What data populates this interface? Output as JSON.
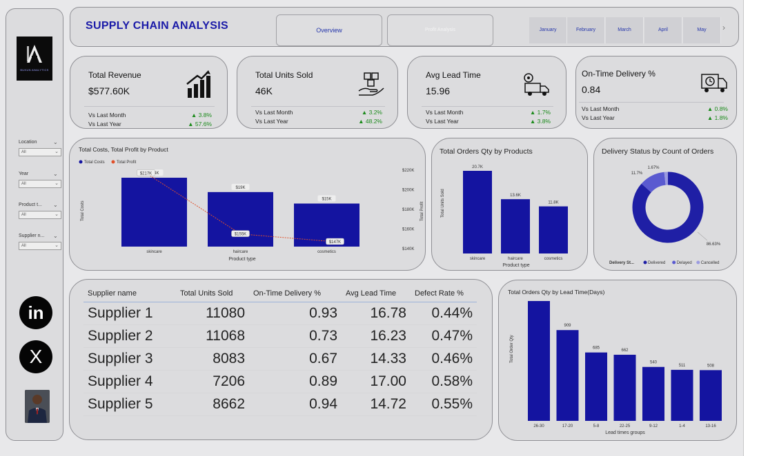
{
  "header": {
    "title": "SUPPLY CHAIN ANALYSIS",
    "nav": [
      "Overview",
      "Profit Analysis"
    ],
    "months": [
      "January",
      "February",
      "March",
      "April",
      "May"
    ]
  },
  "logo": {
    "text": "BUKUN ANALYTICS"
  },
  "filters": [
    {
      "label": "Location",
      "value": "All"
    },
    {
      "label": "Year",
      "value": "All"
    },
    {
      "label": "Product t...",
      "value": "All"
    },
    {
      "label": "Supplier n...",
      "value": "All"
    }
  ],
  "social": {
    "linkedin_glyph": "in",
    "x_glyph": "X"
  },
  "kpis": [
    {
      "title": "Total Revenue",
      "value": "$577.60K",
      "row1": "Vs Last Month",
      "chg1": "▲ 3.8%",
      "row2": "Vs Last Year",
      "chg2": "▲ 57.6%",
      "icon": "growth-chart-icon"
    },
    {
      "title": "Total Units Sold",
      "value": "46K",
      "row1": "Vs Last Month",
      "chg1": "▲ 3.2%",
      "row2": "Vs Last Year",
      "chg2": "▲ 48.2%",
      "icon": "boxes-hand-icon"
    },
    {
      "title": "Avg Lead Time",
      "value": "15.96",
      "row1": "Vs Last Month",
      "chg1": "▲ 1.7%",
      "row2": "Vs Last Year",
      "chg2": "▲ 3.8%",
      "icon": "delivery-truck-gear-icon"
    },
    {
      "title": "On-Time Delivery %",
      "value": "0.84",
      "row1": "Vs Last Month",
      "chg1": "▲ 0.8%",
      "row2": "Vs Last Year",
      "chg2": "▲ 1.8%",
      "icon": "truck-clock-icon"
    }
  ],
  "colors": {
    "bar": "#1414a0",
    "line": "#e0502a",
    "green": "#1a8a1a"
  },
  "chart_data": [
    {
      "type": "bar",
      "title": "Total Costs, Total Profit by Product",
      "legend": [
        "Total Costs",
        "Total Profit"
      ],
      "xlabel": "Product type",
      "ylabel": "Total Costs",
      "y2label": "Total Profit",
      "categories": [
        "skincare",
        "haircare",
        "cosmetics"
      ],
      "series": [
        {
          "name": "Total Costs",
          "values": [
            24,
            19,
            15
          ],
          "labels": [
            "$24K",
            "$19K",
            "$15K"
          ]
        },
        {
          "name": "Total Profit",
          "values": [
            217,
            155,
            147
          ],
          "labels": [
            "$217K",
            "$155K",
            "$147K"
          ]
        }
      ],
      "y2_ticks": [
        "$220K",
        "$200K",
        "$180K",
        "$160K",
        "$140K"
      ],
      "y2lim": [
        140,
        220
      ]
    },
    {
      "type": "bar",
      "title": "Total Orders Qty by Products",
      "xlabel": "Product type",
      "ylabel": "Total Units Sold",
      "categories": [
        "skincare",
        "haircare",
        "cosmetics"
      ],
      "values": [
        20.7,
        13.6,
        11.8
      ],
      "labels": [
        "20.7K",
        "13.6K",
        "11.8K"
      ]
    },
    {
      "type": "pie",
      "title": "Delivery Status by Count of Orders",
      "legend_title": "Delivery St...",
      "categories": [
        "Delivered",
        "Delayed",
        "Cancelled"
      ],
      "values": [
        86.63,
        11.7,
        1.67
      ],
      "labels": [
        "86.63%",
        "11.7%",
        "1.67%"
      ],
      "colors": [
        "#1f1fa5",
        "#5a5ad0",
        "#9a9ae0"
      ]
    },
    {
      "type": "bar",
      "title": "Total Orders Qty by Lead Time(Days)",
      "xlabel": "Lead times groups",
      "ylabel": "Total Order Qty",
      "categories": [
        "26-30",
        "17-20",
        "5-8",
        "22-25",
        "9-12",
        "1-4",
        "13-16"
      ],
      "values": [
        1200,
        909,
        685,
        662,
        540,
        511,
        508
      ],
      "labels": [
        "",
        "909",
        "685",
        "662",
        "540",
        "511",
        "508"
      ]
    }
  ],
  "supplier_table": {
    "headers": [
      "Supplier name",
      "Total Units Sold",
      "On-Time Delivery %",
      "Avg Lead Time",
      "Defect Rate %"
    ],
    "rows": [
      [
        "Supplier 1",
        "11080",
        "0.93",
        "16.78",
        "0.44%"
      ],
      [
        "Supplier 2",
        "11068",
        "0.73",
        "16.23",
        "0.47%"
      ],
      [
        "Supplier 3",
        "8083",
        "0.67",
        "14.33",
        "0.46%"
      ],
      [
        "Supplier 4",
        "7206",
        "0.89",
        "17.00",
        "0.58%"
      ],
      [
        "Supplier 5",
        "8662",
        "0.94",
        "14.72",
        "0.55%"
      ]
    ]
  }
}
